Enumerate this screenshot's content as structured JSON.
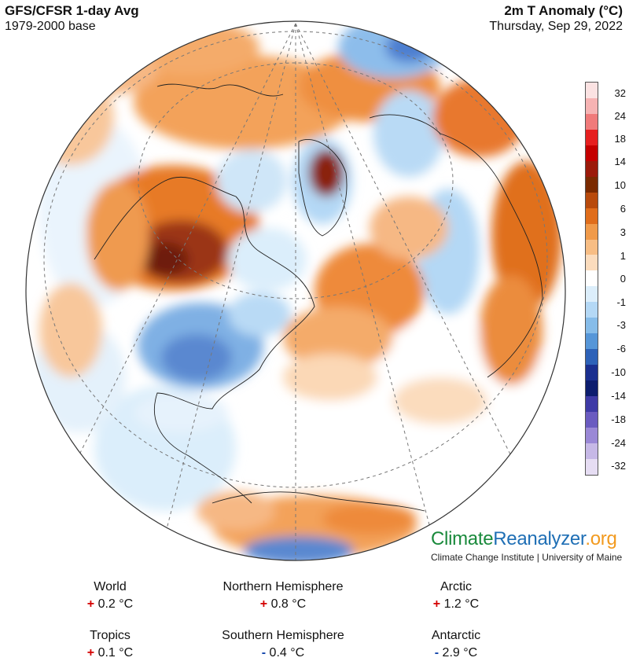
{
  "header": {
    "left_title": "GFS/CFSR 1-day Avg",
    "left_subtitle": "1979-2000 base",
    "right_title": "2m T Anomaly (°C)",
    "right_subtitle": "Thursday, Sep 29, 2022"
  },
  "legend": {
    "labels": [
      "32",
      "24",
      "18",
      "14",
      "10",
      "6",
      "3",
      "1",
      "0",
      "-1",
      "-3",
      "-6",
      "-10",
      "-14",
      "-18",
      "-24",
      "-32"
    ],
    "colors": [
      "#fbe2e2",
      "#f6b3b3",
      "#f07a7a",
      "#e62020",
      "#c40000",
      "#9b1a0a",
      "#7a2a00",
      "#b84a0c",
      "#e06d1b",
      "#f09a4a",
      "#f7bd84",
      "#fbdcbd",
      "#ffffff",
      "#dceefb",
      "#b4d8f5",
      "#86bce9",
      "#5696d8",
      "#2d62b8",
      "#1a2f8f",
      "#0c1d6e",
      "#3e3aa6",
      "#6a5bc0",
      "#9a88d6",
      "#c6b8e6",
      "#e6ddf3"
    ]
  },
  "brand": {
    "part1": "Climate",
    "part2": "Reanalyzer",
    "part3": ".org",
    "subtitle": "Climate Change Institute | University of Maine"
  },
  "stats": [
    {
      "label": "World",
      "sign": "+",
      "value": "0.2 °C"
    },
    {
      "label": "Northern Hemisphere",
      "sign": "+",
      "value": "0.8 °C"
    },
    {
      "label": "Arctic",
      "sign": "+",
      "value": "1.2 °C"
    },
    {
      "label": "Tropics",
      "sign": "+",
      "value": "0.1 °C"
    },
    {
      "label": "Southern Hemisphere",
      "sign": "-",
      "value": "0.4 °C"
    },
    {
      "label": "Antarctic",
      "sign": "-",
      "value": "2.9 °C"
    }
  ]
}
